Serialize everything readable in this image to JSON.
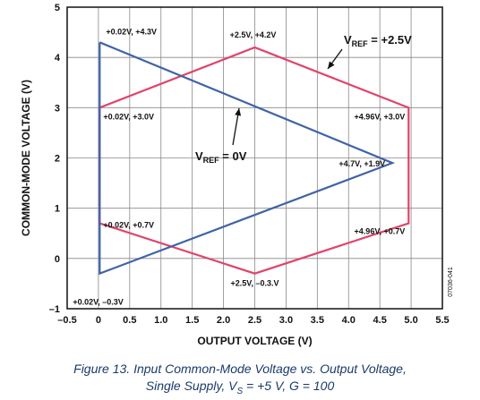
{
  "chart_data": {
    "type": "line",
    "xlabel": "OUTPUT VOLTAGE (V)",
    "ylabel": "COMMON-MODE VOLTAGE (V)",
    "xlim": [
      -0.5,
      5.5
    ],
    "ylim": [
      -1,
      5
    ],
    "x_ticks": [
      -0.5,
      0,
      0.5,
      1.0,
      1.5,
      2.0,
      2.5,
      3.0,
      3.5,
      4.0,
      4.5,
      5.0,
      5.5
    ],
    "x_tick_labels": [
      "–0.5",
      "0",
      "0.5",
      "1.0",
      "1.5",
      "2.0",
      "2.5",
      "3.0",
      "3.5",
      "4.0",
      "4.5",
      "5.0",
      "5.5"
    ],
    "y_ticks": [
      -1,
      0,
      1,
      2,
      3,
      4,
      5
    ],
    "y_tick_labels": [
      "–1",
      "0",
      "1",
      "2",
      "3",
      "4",
      "5"
    ],
    "grid": true,
    "series": [
      {
        "label_main": "V",
        "label_sub": "REF",
        "label_tail": " = +2.5V",
        "color": "#e0446a",
        "points": [
          [
            0.02,
            3.0
          ],
          [
            2.5,
            4.2
          ],
          [
            4.96,
            3.0
          ],
          [
            4.96,
            0.7
          ],
          [
            2.5,
            -0.3
          ],
          [
            0.02,
            0.7
          ],
          [
            0.02,
            3.0
          ]
        ]
      },
      {
        "label_main": "V",
        "label_sub": "REF",
        "label_tail": " = 0V",
        "color": "#3f63a7",
        "points": [
          [
            0.02,
            4.3
          ],
          [
            4.7,
            1.9
          ],
          [
            0.02,
            -0.3
          ],
          [
            0.02,
            4.3
          ]
        ]
      }
    ],
    "point_labels": [
      {
        "text": "+0.02V, +4.3V",
        "x": 0.02,
        "y": 4.3
      },
      {
        "text": "+2.5V, +4.2V",
        "x": 2.5,
        "y": 4.2
      },
      {
        "text": "+0.02V, +3.0V",
        "x": 0.02,
        "y": 3.0
      },
      {
        "text": "+4.96V, +3.0V",
        "x": 4.96,
        "y": 3.0
      },
      {
        "text": "+4.7V, +1.9V",
        "x": 4.7,
        "y": 1.9
      },
      {
        "text": "+0.02V, +0.7V",
        "x": 0.02,
        "y": 0.7
      },
      {
        "text": "+4.96V, +0.7V",
        "x": 4.96,
        "y": 0.7
      },
      {
        "text": "+2.5V, –0.3.V",
        "x": 2.5,
        "y": -0.3
      },
      {
        "text": "+0.02V, –0.3V",
        "x": 0.02,
        "y": -0.3
      }
    ],
    "figure_id": "07036-041"
  },
  "caption": {
    "line1": "Figure 13. Input Common-Mode Voltage vs. Output Voltage,",
    "line2_pre": "Single Supply, V",
    "line2_sub": "S",
    "line2_post": " = +5 V, G = 100"
  }
}
